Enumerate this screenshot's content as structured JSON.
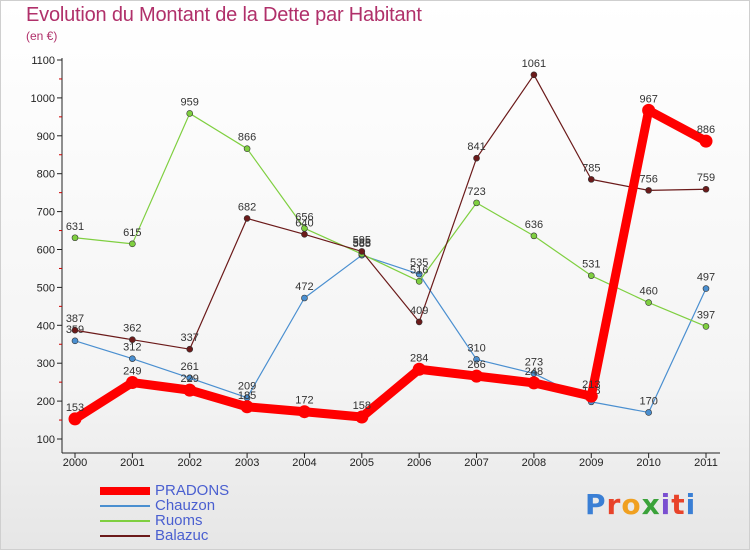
{
  "header": {
    "title": "Evolution du Montant de la Dette par Habitant",
    "subtitle": "(en €)"
  },
  "logo": {
    "text": "Proxiti",
    "colors": [
      "#3a7fd5",
      "#e8432a",
      "#f0a020",
      "#3aa23a",
      "#7a4fd0",
      "#e8432a",
      "#3a7fd5"
    ]
  },
  "chart_data": {
    "type": "line",
    "ylim": [
      100,
      1100
    ],
    "yticks": [
      100,
      200,
      300,
      400,
      500,
      600,
      700,
      800,
      900,
      1000,
      1100
    ],
    "x": [
      "2000",
      "2001",
      "2002",
      "2003",
      "2004",
      "2005",
      "2006",
      "2007",
      "2008",
      "2009",
      "2010",
      "2011"
    ],
    "grid": false,
    "legend_position": "bottom-left",
    "series": [
      {
        "name": "PRADONS",
        "color": "#ff0000",
        "width": 9,
        "values": [
          153,
          249,
          229,
          185,
          172,
          158,
          284,
          266,
          248,
          213,
          967,
          886
        ]
      },
      {
        "name": "Chauzon",
        "color": "#4a8fd0",
        "width": 1.2,
        "values": [
          359,
          312,
          261,
          209,
          472,
          585,
          535,
          310,
          273,
          198,
          170,
          497
        ]
      },
      {
        "name": "Ruoms",
        "color": "#7fcf40",
        "width": 1.2,
        "values": [
          631,
          615,
          959,
          866,
          656,
          588,
          516,
          723,
          636,
          531,
          460,
          397
        ]
      },
      {
        "name": "Balazuc",
        "color": "#6b1a1a",
        "width": 1.2,
        "values": [
          387,
          362,
          337,
          682,
          640,
          595,
          409,
          841,
          1061,
          785,
          756,
          759
        ]
      }
    ]
  }
}
